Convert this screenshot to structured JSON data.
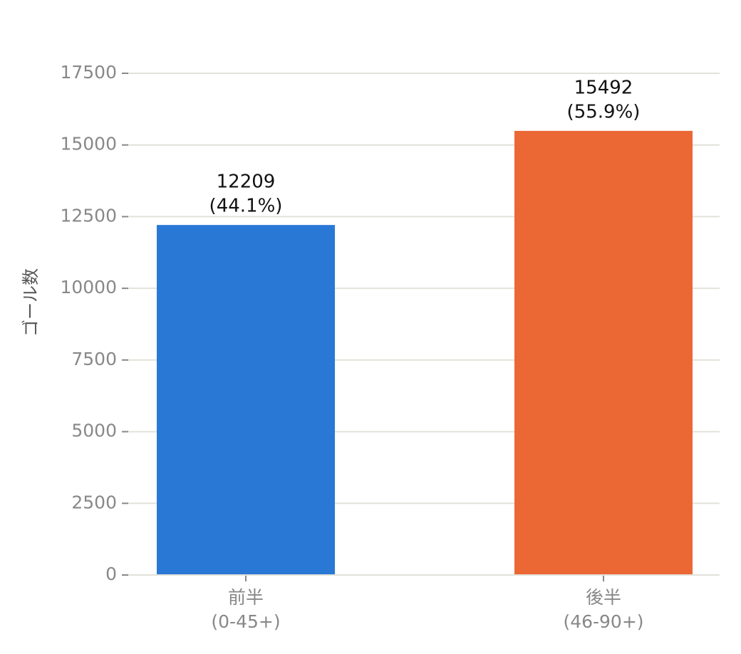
{
  "chart_data": {
    "type": "bar",
    "ylabel": "ゴール数",
    "categories": [
      [
        "前半",
        "(0-45+)"
      ],
      [
        "後半",
        "(46-90+)"
      ]
    ],
    "values": [
      12209,
      15492
    ],
    "value_labels": [
      [
        "12209",
        "(44.1%)"
      ],
      [
        "15492",
        "(55.9%)"
      ]
    ],
    "colors": [
      "#2a78d6",
      "#eb6835"
    ],
    "ylim": [
      0,
      17500
    ],
    "yticks": [
      0,
      2500,
      5000,
      7500,
      10000,
      12500,
      15000,
      17500
    ],
    "grid": true
  }
}
